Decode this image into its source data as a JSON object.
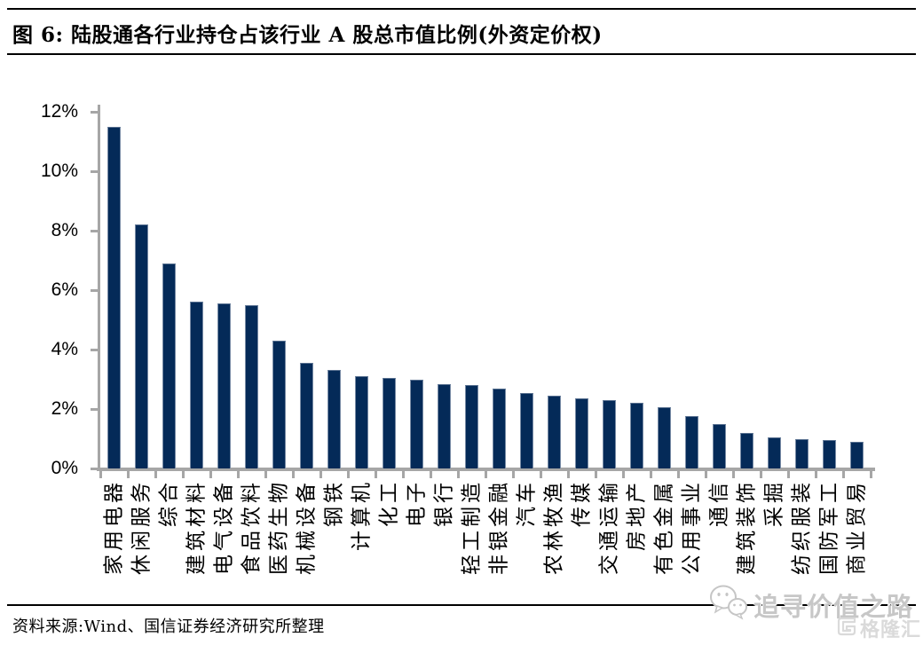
{
  "header": {
    "title": "图 6: 陆股通各行业持仓占该行业 A 股总市值比例(外资定价权)"
  },
  "chart_data": {
    "type": "bar",
    "title": "陆股通各行业持仓占该行业 A 股总市值比例(外资定价权)",
    "categories": [
      "家用电器",
      "休闲服务",
      "综合",
      "建筑材料",
      "电气设备",
      "食品饮料",
      "医药生物",
      "机械设备",
      "钢铁",
      "计算机",
      "化工",
      "电子",
      "银行",
      "轻工制造",
      "非银金融",
      "汽车",
      "农林牧渔",
      "传媒",
      "交通运输",
      "房地产",
      "有色金属",
      "公用事业",
      "通信",
      "建筑装饰",
      "采掘",
      "纺织服装",
      "国防军工",
      "商业贸易"
    ],
    "values": [
      11.5,
      8.2,
      6.9,
      5.6,
      5.55,
      5.5,
      4.3,
      3.55,
      3.3,
      3.1,
      3.05,
      3.0,
      2.85,
      2.8,
      2.7,
      2.55,
      2.45,
      2.35,
      2.3,
      2.2,
      2.05,
      1.75,
      1.5,
      1.2,
      1.05,
      1.0,
      0.95,
      0.9
    ],
    "unit": "%",
    "xlabel": "",
    "ylabel": "",
    "ylim": [
      0,
      12
    ],
    "ytick_labels": [
      "12%",
      "10%",
      "8%",
      "6%",
      "4%",
      "2%",
      "0%"
    ],
    "grid": false,
    "legend_position": "none",
    "bar_color": "#042a58",
    "axis_color": "#a6a6a6"
  },
  "footer": {
    "source": "资料来源:Wind、国信证券经济研究所整理"
  },
  "watermark": {
    "text": "追寻价值之路",
    "wechat_icon": "wechat-bubbles-icon",
    "logo_text": "格隆汇"
  }
}
